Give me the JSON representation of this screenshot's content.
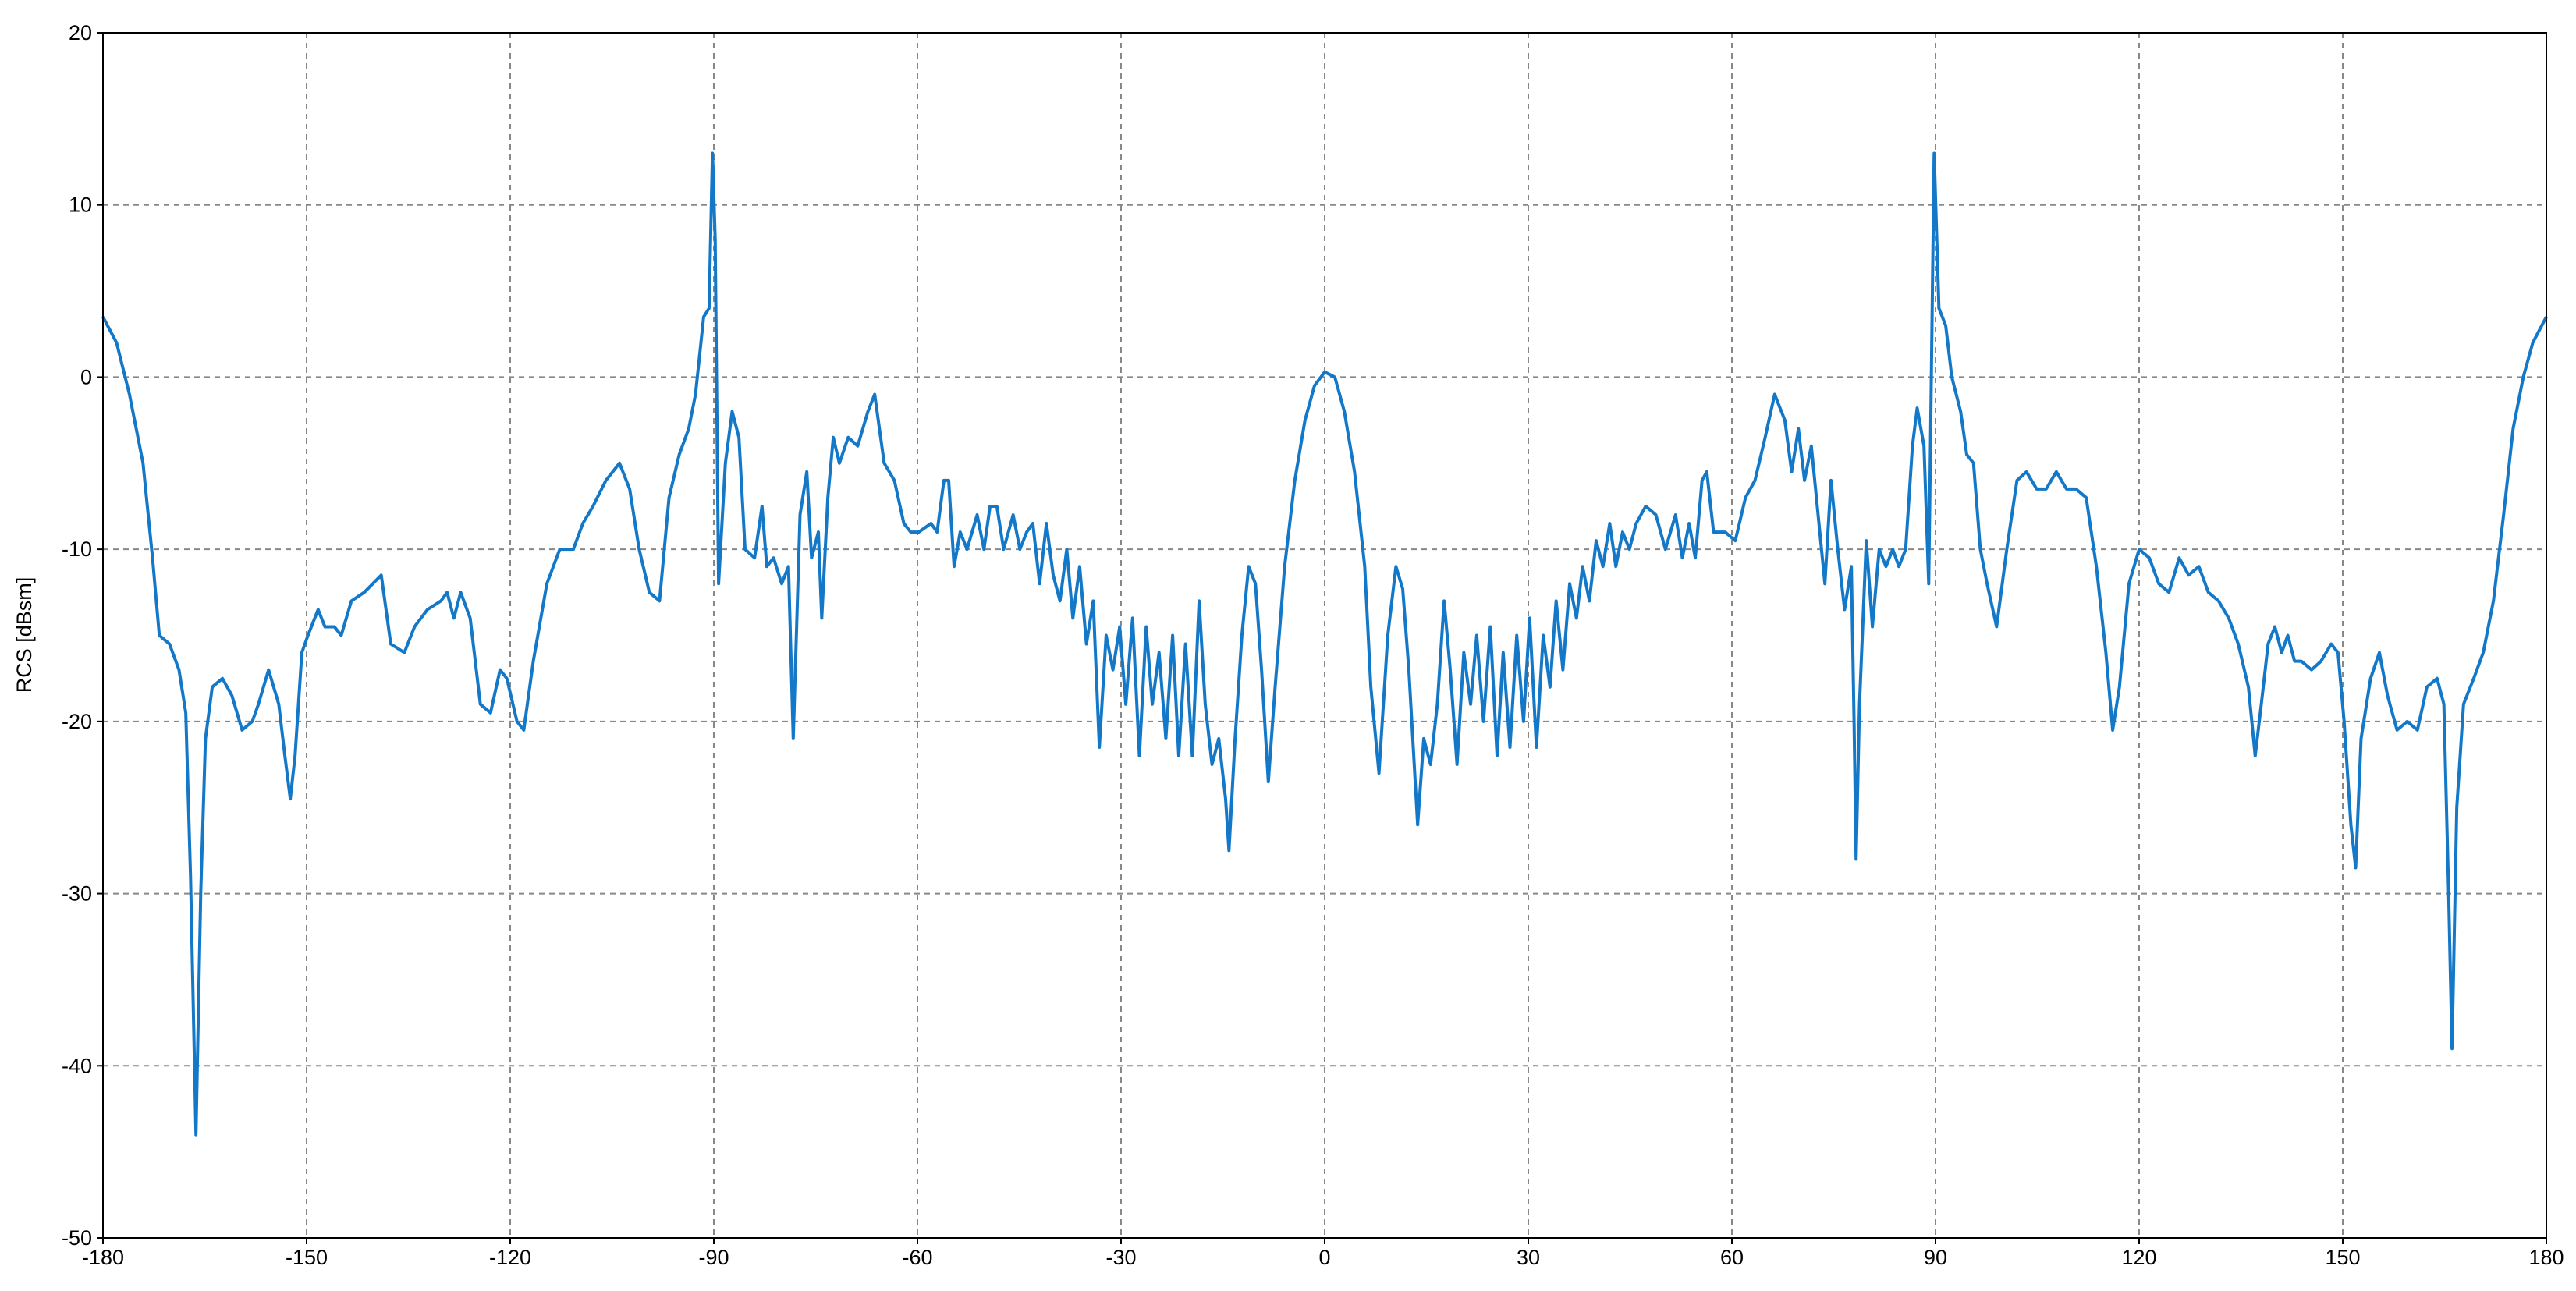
{
  "chart_data": {
    "type": "line",
    "y_label": "RCS [dBsm]",
    "xlim": [
      -180,
      180
    ],
    "ylim": [
      -50,
      20
    ],
    "xticks": [
      -180,
      -150,
      -120,
      -90,
      -60,
      -30,
      0,
      30,
      60,
      90,
      120,
      150,
      180
    ],
    "yticks": [
      -50,
      -40,
      -30,
      -20,
      -10,
      0,
      10,
      20
    ],
    "grid": true,
    "series": [
      {
        "color": "#1478c8",
        "x": [
          -180,
          -178,
          -176.1,
          -174.1,
          -172.7,
          -171.7,
          -170.2,
          -168.8,
          -167.8,
          -167.1,
          -166.3,
          -165.6,
          -164.9,
          -163.9,
          -162.4,
          -161,
          -159.5,
          -158,
          -157.1,
          -155.6,
          -154.1,
          -153.2,
          -152.4,
          -151.7,
          -150.7,
          -149.8,
          -148.3,
          -147.3,
          -145.9,
          -144.9,
          -143.4,
          -141.5,
          -139,
          -137.6,
          -135.6,
          -134.1,
          -132.2,
          -130.2,
          -129.3,
          -128.3,
          -127.3,
          -125.9,
          -124.4,
          -122.9,
          -121.5,
          -120.5,
          -119,
          -118,
          -116.6,
          -114.6,
          -112.7,
          -110.7,
          -109.3,
          -107.8,
          -105.9,
          -103.9,
          -102.4,
          -101,
          -99.5,
          -98,
          -96.6,
          -95.1,
          -93.7,
          -92.7,
          -91.5,
          -90.7,
          -90.2,
          -89.8,
          -89.3,
          -88.3,
          -87.3,
          -86.3,
          -85.4,
          -84,
          -82.9,
          -82.2,
          -81.2,
          -80,
          -79,
          -78.3,
          -77.3,
          -76.3,
          -75.6,
          -74.6,
          -74.1,
          -73.2,
          -72.4,
          -71.5,
          -70.2,
          -68.8,
          -67.3,
          -66.3,
          -64.9,
          -63.4,
          -62,
          -61,
          -59.8,
          -58,
          -57.1,
          -56.1,
          -55.4,
          -54.6,
          -53.7,
          -52.7,
          -51.2,
          -50.2,
          -49.3,
          -48.3,
          -47.3,
          -45.9,
          -44.9,
          -43.9,
          -43,
          -42,
          -41,
          -40,
          -39,
          -38,
          -37.1,
          -36.1,
          -35.1,
          -34.1,
          -33.2,
          -32.2,
          -31.2,
          -30.2,
          -29.3,
          -28.3,
          -27.3,
          -26.3,
          -25.4,
          -24.4,
          -23.4,
          -22.4,
          -21.5,
          -20.5,
          -19.5,
          -18.5,
          -17.6,
          -16.6,
          -15.6,
          -14.6,
          -14.1,
          -13.2,
          -12.2,
          -11.2,
          -10.2,
          -9.3,
          -8.3,
          -7.3,
          -5.9,
          -4.4,
          -2.9,
          -1.5,
          0,
          1.5,
          2.9,
          4.4,
          5.9,
          6.8,
          8,
          9.3,
          10.5,
          11.5,
          12.4,
          13.7,
          14.6,
          15.6,
          16.6,
          17.6,
          18.5,
          19.5,
          20.5,
          21.5,
          22.4,
          23.4,
          24.4,
          25.4,
          26.3,
          27.3,
          28.3,
          29.3,
          30.2,
          31.2,
          32.2,
          33.2,
          34.1,
          35.1,
          36.1,
          37.1,
          38,
          39,
          40,
          41,
          42,
          42.9,
          43.9,
          44.9,
          45.9,
          47.3,
          48.8,
          50.2,
          51.7,
          52.7,
          53.7,
          54.6,
          55.6,
          56.3,
          57.3,
          59,
          60.5,
          62,
          63.4,
          64.9,
          66.3,
          67.8,
          68.8,
          69.8,
          70.7,
          71.7,
          72.7,
          73.7,
          74.6,
          75.6,
          76.6,
          77.6,
          78,
          78.3,
          78.8,
          79.8,
          80.7,
          81.7,
          82.7,
          83.7,
          84.6,
          85.6,
          86.6,
          87.3,
          88.3,
          89,
          89.8,
          90.5,
          91.5,
          92.4,
          93.7,
          94.6,
          95.6,
          96.6,
          97.6,
          99,
          100.5,
          102,
          103.4,
          104.9,
          106.3,
          107.8,
          109.3,
          110.7,
          112.2,
          113.7,
          115.1,
          116.1,
          117.1,
          118.5,
          120,
          121.5,
          122.9,
          124.4,
          125.9,
          127.3,
          128.8,
          130.2,
          131.7,
          133.2,
          134.6,
          136.1,
          137.1,
          138,
          139,
          140,
          141,
          141.9,
          142.9,
          143.9,
          145.4,
          146.8,
          148.3,
          149.3,
          150.2,
          151.2,
          151.9,
          152.7,
          154.1,
          155.4,
          156.6,
          158,
          159.5,
          161,
          162.4,
          163.9,
          164.9,
          165.6,
          166.1,
          166.8,
          167.8,
          169.3,
          170.7,
          172.2,
          173.7,
          175.1,
          176.6,
          178,
          180
        ],
        "values": [
          3.5,
          2,
          -1,
          -5,
          -10.5,
          -15,
          -15.5,
          -17,
          -19.5,
          -29,
          -44,
          -30,
          -21,
          -18,
          -17.5,
          -18.5,
          -20.5,
          -20,
          -19,
          -17,
          -19,
          -22,
          -24.5,
          -22,
          -16,
          -15,
          -13.5,
          -14.5,
          -14.5,
          -15,
          -13,
          -12.5,
          -11.5,
          -15.5,
          -16,
          -14.5,
          -13.5,
          -13,
          -12.5,
          -14,
          -12.5,
          -14,
          -19,
          -19.5,
          -17,
          -17.5,
          -20,
          -20.5,
          -16.5,
          -12,
          -10,
          -10,
          -8.5,
          -7.5,
          -6,
          -5,
          -6.5,
          -10,
          -12.5,
          -13,
          -7,
          -4.5,
          -3,
          -1,
          3.5,
          4,
          13,
          8,
          -12,
          -5,
          -2,
          -3.5,
          -10,
          -10.5,
          -7.5,
          -11,
          -10.5,
          -12,
          -11,
          -21,
          -8,
          -5.5,
          -10.5,
          -9,
          -14,
          -7,
          -3.5,
          -5,
          -3.5,
          -4,
          -2,
          -1,
          -5,
          -6,
          -8.5,
          -9,
          -9,
          -8.5,
          -9,
          -6,
          -6,
          -11,
          -9,
          -10,
          -8,
          -10,
          -7.5,
          -7.5,
          -10,
          -8,
          -10,
          -9,
          -8.5,
          -12,
          -8.5,
          -11.5,
          -13,
          -10,
          -14,
          -11,
          -15.5,
          -13,
          -21.5,
          -15,
          -17,
          -14.5,
          -19,
          -14,
          -22,
          -14.5,
          -19,
          -16,
          -21,
          -15,
          -22,
          -15.5,
          -22,
          -13,
          -19,
          -22.5,
          -21,
          -24.5,
          -27.5,
          -21,
          -15,
          -11,
          -12,
          -17,
          -23.5,
          -18,
          -11,
          -6,
          -2.5,
          -0.5,
          0.3,
          0,
          -2,
          -5.5,
          -11,
          -18,
          -23,
          -15,
          -11,
          -12.3,
          -17,
          -26,
          -21,
          -22.5,
          -19,
          -13,
          -17,
          -22.5,
          -16,
          -19,
          -15,
          -20,
          -14.5,
          -22,
          -16,
          -21.5,
          -15,
          -20,
          -14,
          -21.5,
          -15,
          -18,
          -13,
          -17,
          -12,
          -14,
          -11,
          -13,
          -9.5,
          -11,
          -8.5,
          -11,
          -9,
          -10,
          -8.5,
          -7.5,
          -8,
          -10,
          -8,
          -10.5,
          -8.5,
          -10.5,
          -6,
          -5.5,
          -9,
          -9,
          -9.5,
          -7,
          -6,
          -3.5,
          -1,
          -2.5,
          -5.5,
          -3,
          -6,
          -4,
          -8,
          -12,
          -6,
          -10,
          -13.5,
          -11,
          -20,
          -28,
          -19,
          -9.5,
          -14.5,
          -10,
          -11,
          -10,
          -11,
          -10,
          -4,
          -1.8,
          -4,
          -12,
          13,
          4,
          3,
          0,
          -2,
          -4.5,
          -5,
          -10,
          -12,
          -14.5,
          -10,
          -6,
          -5.5,
          -6.5,
          -6.5,
          -5.5,
          -6.5,
          -6.5,
          -7,
          -11,
          -16,
          -20.5,
          -18,
          -12,
          -10,
          -10.5,
          -12,
          -12.5,
          -10.5,
          -11.5,
          -11,
          -12.5,
          -13,
          -14,
          -15.5,
          -18,
          -22,
          -19,
          -15.5,
          -14.5,
          -16,
          -15,
          -16.5,
          -16.5,
          -17,
          -16.5,
          -15.5,
          -16,
          -20,
          -26,
          -28.5,
          -21,
          -17.5,
          -16,
          -18.5,
          -20.5,
          -20,
          -20.5,
          -18,
          -17.5,
          -19,
          -30,
          -39,
          -25,
          -19,
          -17.5,
          -16,
          -13,
          -8,
          -3,
          0,
          2,
          3.5
        ]
      }
    ]
  }
}
